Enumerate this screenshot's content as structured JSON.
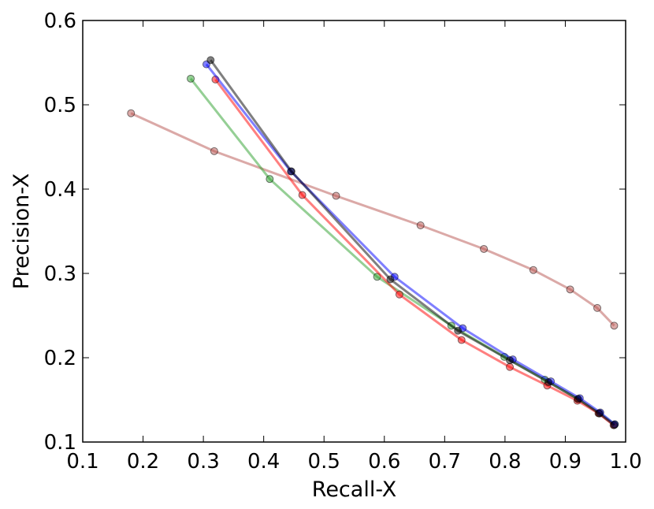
{
  "chart_data": {
    "type": "line",
    "title": "",
    "xlabel": "Recall-X",
    "ylabel": "Precision-X",
    "xlim": [
      0.1,
      1.0
    ],
    "ylim": [
      0.1,
      0.6
    ],
    "x_ticks": [
      0.1,
      0.2,
      0.3,
      0.4,
      0.5,
      0.6,
      0.7,
      0.8,
      0.9,
      1.0
    ],
    "y_ticks": [
      0.1,
      0.2,
      0.3,
      0.4,
      0.5,
      0.6
    ],
    "x_tick_labels": [
      "0.1",
      "0.2",
      "0.3",
      "0.4",
      "0.5",
      "0.6",
      "0.7",
      "0.8",
      "0.9",
      "1.0"
    ],
    "y_tick_labels": [
      "0.1",
      "0.2",
      "0.3",
      "0.4",
      "0.5",
      "0.6"
    ],
    "grid": false,
    "legend": "none",
    "series": [
      {
        "color": "#b85450",
        "x": [
          0.18,
          0.318,
          0.52,
          0.66,
          0.765,
          0.847,
          0.908,
          0.953,
          0.981
        ],
        "y": [
          0.49,
          0.445,
          0.392,
          0.357,
          0.329,
          0.304,
          0.281,
          0.259,
          0.238
        ]
      },
      {
        "color": "#2ca02c",
        "x": [
          0.279,
          0.41,
          0.588,
          0.711,
          0.799,
          0.866,
          0.921,
          0.957,
          0.982
        ],
        "y": [
          0.531,
          0.412,
          0.296,
          0.238,
          0.201,
          0.174,
          0.151,
          0.134,
          0.121
        ]
      },
      {
        "color": "#ff0000",
        "x": [
          0.32,
          0.464,
          0.625,
          0.728,
          0.808,
          0.87,
          0.92,
          0.955,
          0.98
        ],
        "y": [
          0.53,
          0.393,
          0.275,
          0.221,
          0.189,
          0.167,
          0.149,
          0.134,
          0.12
        ]
      },
      {
        "color": "#0000ff",
        "x": [
          0.305,
          0.445,
          0.617,
          0.73,
          0.813,
          0.876,
          0.924,
          0.958,
          0.982
        ],
        "y": [
          0.548,
          0.421,
          0.296,
          0.235,
          0.198,
          0.172,
          0.152,
          0.135,
          0.121
        ]
      },
      {
        "color": "#000000",
        "x": [
          0.312,
          0.446,
          0.61,
          0.722,
          0.808,
          0.872,
          0.921,
          0.956,
          0.981
        ],
        "y": [
          0.553,
          0.421,
          0.293,
          0.232,
          0.197,
          0.171,
          0.151,
          0.134,
          0.12
        ]
      }
    ]
  }
}
